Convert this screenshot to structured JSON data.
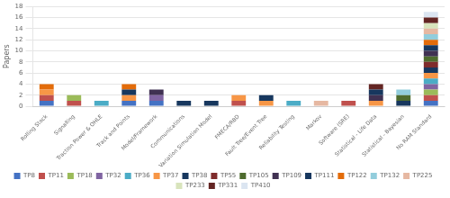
{
  "chart_data": {
    "type": "bar",
    "stacked": true,
    "ylabel": "Papers",
    "categories": [
      "Rolling Stock",
      "Signalling",
      "Traction Power & OHLE",
      "Track and Points",
      "Model/Framework",
      "Communications",
      "Variation Simulation Model",
      "FMECA/RBD",
      "Fault Tree/Event Tree",
      "Reliability Testing",
      "Markov",
      "Software (SRE)",
      "Statistical - Life Data",
      "Statistical - Bayesian",
      "No RAM Standard"
    ],
    "series": [
      {
        "name": "TP8",
        "color": "#4472c4",
        "values": [
          1,
          0,
          0,
          1,
          1,
          0,
          0,
          0,
          0,
          0,
          0,
          0,
          0,
          0,
          1
        ]
      },
      {
        "name": "TP11",
        "color": "#c0504d",
        "values": [
          1,
          1,
          0,
          0,
          0,
          0,
          0,
          1,
          0,
          0,
          0,
          1,
          0,
          0,
          1
        ]
      },
      {
        "name": "TP18",
        "color": "#9bbb59",
        "values": [
          0,
          1,
          0,
          0,
          0,
          0,
          0,
          0,
          0,
          0,
          0,
          0,
          0,
          0,
          1
        ]
      },
      {
        "name": "TP32",
        "color": "#8064a2",
        "values": [
          0,
          0,
          0,
          0,
          1,
          0,
          0,
          0,
          0,
          0,
          0,
          0,
          0,
          0,
          1
        ]
      },
      {
        "name": "TP36",
        "color": "#4bacc6",
        "values": [
          0,
          0,
          1,
          0,
          0,
          0,
          0,
          0,
          0,
          1,
          0,
          0,
          0,
          0,
          1
        ]
      },
      {
        "name": "TP37",
        "color": "#f79646",
        "values": [
          1,
          0,
          0,
          1,
          0,
          0,
          0,
          1,
          1,
          0,
          0,
          0,
          1,
          0,
          1
        ]
      },
      {
        "name": "TP38",
        "color": "#17375e",
        "values": [
          0,
          0,
          0,
          1,
          0,
          0,
          0,
          0,
          1,
          0,
          0,
          0,
          0,
          1,
          1
        ]
      },
      {
        "name": "TP55",
        "color": "#7f2c2c",
        "values": [
          0,
          0,
          0,
          0,
          0,
          0,
          0,
          0,
          0,
          0,
          0,
          0,
          0,
          0,
          1
        ]
      },
      {
        "name": "TP105",
        "color": "#4e6b2e",
        "values": [
          0,
          0,
          0,
          0,
          0,
          0,
          0,
          0,
          0,
          0,
          0,
          0,
          0,
          1,
          1
        ]
      },
      {
        "name": "TP109",
        "color": "#403152",
        "values": [
          0,
          0,
          0,
          0,
          1,
          0,
          0,
          0,
          0,
          0,
          0,
          0,
          1,
          0,
          1
        ]
      },
      {
        "name": "TP111",
        "color": "#17375e",
        "values": [
          0,
          0,
          0,
          0,
          0,
          1,
          1,
          0,
          0,
          0,
          0,
          0,
          1,
          0,
          1
        ]
      },
      {
        "name": "TP122",
        "color": "#e36c0a",
        "values": [
          1,
          0,
          0,
          1,
          0,
          0,
          0,
          0,
          0,
          0,
          0,
          0,
          0,
          0,
          1
        ]
      },
      {
        "name": "TP132",
        "color": "#92cddc",
        "values": [
          0,
          0,
          0,
          0,
          0,
          0,
          0,
          0,
          0,
          0,
          0,
          0,
          0,
          1,
          1
        ]
      },
      {
        "name": "TP225",
        "color": "#e6b8a2",
        "values": [
          0,
          0,
          0,
          0,
          0,
          0,
          0,
          0,
          0,
          0,
          1,
          0,
          0,
          0,
          1
        ]
      },
      {
        "name": "TP233",
        "color": "#d8e4bc",
        "values": [
          0,
          0,
          0,
          0,
          0,
          0,
          0,
          0,
          0,
          0,
          0,
          0,
          0,
          0,
          1
        ]
      },
      {
        "name": "TP331",
        "color": "#632523",
        "values": [
          0,
          0,
          0,
          0,
          0,
          0,
          0,
          0,
          0,
          0,
          0,
          0,
          1,
          0,
          1
        ]
      },
      {
        "name": "TP410",
        "color": "#dbe5f1",
        "values": [
          0,
          0,
          0,
          0,
          0,
          0,
          0,
          0,
          0,
          0,
          0,
          0,
          0,
          0,
          1
        ]
      }
    ],
    "ylim": [
      0,
      18
    ],
    "yticks": [
      0,
      2,
      4,
      6,
      8,
      10,
      12,
      14,
      16,
      18
    ],
    "grid": true,
    "legend": "bottom"
  }
}
